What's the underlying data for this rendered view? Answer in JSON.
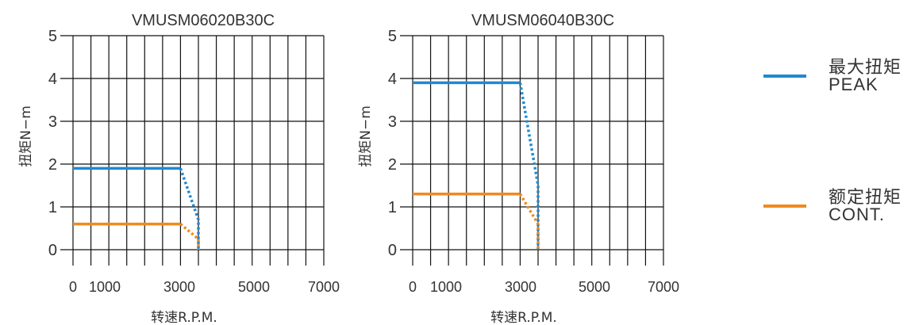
{
  "colors": {
    "peak": "#1f8ad0",
    "cont": "#ef8a1e",
    "grid": "#111111",
    "text": "#333333"
  },
  "legend": [
    {
      "key": "peak",
      "label_cn": "最大扭矩",
      "label_en": "PEAK"
    },
    {
      "key": "cont",
      "label_cn": "额定扭矩",
      "label_en": "CONT."
    }
  ],
  "chart_data": [
    {
      "type": "line",
      "title": "VMUSM06020B30C",
      "xlabel": "转速R.P.M.",
      "ylabel": "扭矩N−m",
      "xlim": [
        0,
        7000
      ],
      "ylim": [
        0,
        5
      ],
      "x_tick_labels": [
        "0",
        "1000",
        "3000",
        "5000",
        "7000"
      ],
      "y_tick_labels": [
        "0",
        "1",
        "2",
        "3",
        "4",
        "5"
      ],
      "grid": true,
      "series": [
        {
          "key": "peak",
          "solid": [
            [
              0,
              1.9
            ],
            [
              3000,
              1.9
            ]
          ],
          "dotted": [
            [
              3000,
              1.9
            ],
            [
              3500,
              0.7
            ],
            [
              3500,
              0
            ]
          ]
        },
        {
          "key": "cont",
          "solid": [
            [
              0,
              0.6
            ],
            [
              3000,
              0.6
            ]
          ],
          "dotted": [
            [
              3000,
              0.6
            ],
            [
              3500,
              0.25
            ],
            [
              3500,
              0
            ]
          ]
        }
      ]
    },
    {
      "type": "line",
      "title": "VMUSM06040B30C",
      "xlabel": "转速R.P.M.",
      "ylabel": "扭矩N−m",
      "xlim": [
        0,
        7000
      ],
      "ylim": [
        0,
        5
      ],
      "x_tick_labels": [
        "0",
        "1000",
        "3000",
        "5000",
        "7000"
      ],
      "y_tick_labels": [
        "0",
        "1",
        "2",
        "3",
        "4",
        "5"
      ],
      "grid": true,
      "series": [
        {
          "key": "peak",
          "solid": [
            [
              0,
              3.9
            ],
            [
              3000,
              3.9
            ]
          ],
          "dotted": [
            [
              3000,
              3.9
            ],
            [
              3500,
              1.5
            ],
            [
              3500,
              0
            ]
          ]
        },
        {
          "key": "cont",
          "solid": [
            [
              0,
              1.3
            ],
            [
              3000,
              1.3
            ]
          ],
          "dotted": [
            [
              3000,
              1.3
            ],
            [
              3500,
              0.6
            ],
            [
              3500,
              0
            ]
          ]
        }
      ]
    }
  ]
}
